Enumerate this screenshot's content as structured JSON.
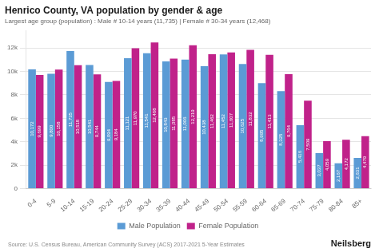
{
  "chart_data": {
    "type": "bar",
    "title": "Henrico County, VA population by gender & age",
    "subtitle": "Largest age group (population) : Male # 10-14 years (11,735) | Female # 30-34 years (12,468)",
    "annotations": [
      "Source: U.S. Census Bureau, American Community Survey (ACS) 2017-2021 5-Year Estimates",
      "Neilsberg"
    ],
    "categories": [
      "0-4",
      "5-9",
      "10-14",
      "15-19",
      "20-24",
      "25-29",
      "30-34",
      "35-39",
      "40-44",
      "45-49",
      "50-54",
      "55-59",
      "60-64",
      "65-69",
      "70-74",
      "75-79",
      "80-84",
      "85+"
    ],
    "series": [
      {
        "name": "Male Population",
        "color": "#5b9bd5",
        "values": [
          10172,
          9800,
          11735,
          10541,
          9094,
          11121,
          11541,
          10843,
          11006,
          10438,
          11452,
          10625,
          8995,
          8325,
          5416,
          3037,
          2167,
          2631
        ],
        "value_labels": [
          "10,172",
          "9,800",
          "11,735",
          "10,541",
          "9,094",
          "11,121",
          "11,541",
          "10,843",
          "11,006",
          "10,438",
          "11,452",
          "10,625",
          "8,995",
          "8,325",
          "5,416",
          "3,037",
          "2,167",
          "2,631"
        ]
      },
      {
        "name": "Female Population",
        "color": "#c0228a",
        "values": [
          9699,
          10158,
          10518,
          9744,
          9184,
          11970,
          12468,
          11085,
          12219,
          11462,
          11607,
          11832,
          11413,
          9764,
          7509,
          4059,
          4172,
          4479
        ],
        "value_labels": [
          "9,699",
          "10,158",
          "10,518",
          "9,744",
          "9,184",
          "11,970",
          "12,468",
          "11,085",
          "12,219",
          "11,462",
          "11,607",
          "11,832",
          "11,413",
          "9,764",
          "7,509",
          "4,059",
          "4,172",
          "4,479"
        ]
      }
    ],
    "ylim": [
      0,
      13500
    ],
    "yticks": [
      0,
      {
        "value": 2000,
        "label": "2k"
      },
      {
        "value": 4000,
        "label": "4k"
      },
      {
        "value": 6000,
        "label": "6k"
      },
      {
        "value": 8000,
        "label": "8k"
      },
      {
        "value": 10000,
        "label": "10k"
      },
      {
        "value": 12000,
        "label": "12k"
      }
    ],
    "grid": true,
    "legend": "bottom",
    "data_labels": true
  }
}
